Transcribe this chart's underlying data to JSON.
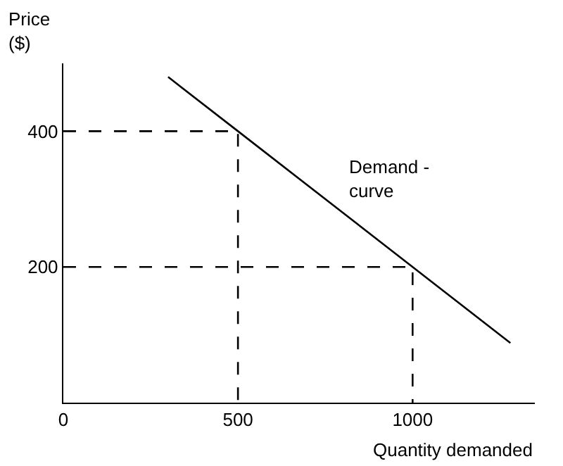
{
  "chart_data": {
    "type": "line",
    "xlabel": "Quantity demanded",
    "ylabel": "Price\n($)",
    "xlim": [
      0,
      1350
    ],
    "ylim": [
      0,
      500
    ],
    "xticks": [
      0,
      500,
      1000
    ],
    "yticks": [
      200,
      400
    ],
    "marker": "none",
    "series": [
      {
        "color": "#000000",
        "x": [
          300,
          500,
          1000,
          1280
        ],
        "values": [
          480,
          400,
          200,
          88
        ],
        "line_style": "solid"
      },
      {
        "color": "#000000",
        "x": [
          0,
          500,
          500
        ],
        "values": [
          400,
          400,
          0
        ],
        "line_style": "dashed"
      },
      {
        "color": "#000000",
        "x": [
          0,
          1000,
          1000
        ],
        "values": [
          200,
          200,
          0
        ],
        "line_style": "dashed"
      }
    ],
    "annotations": [
      "Demand -\ncurve"
    ]
  }
}
